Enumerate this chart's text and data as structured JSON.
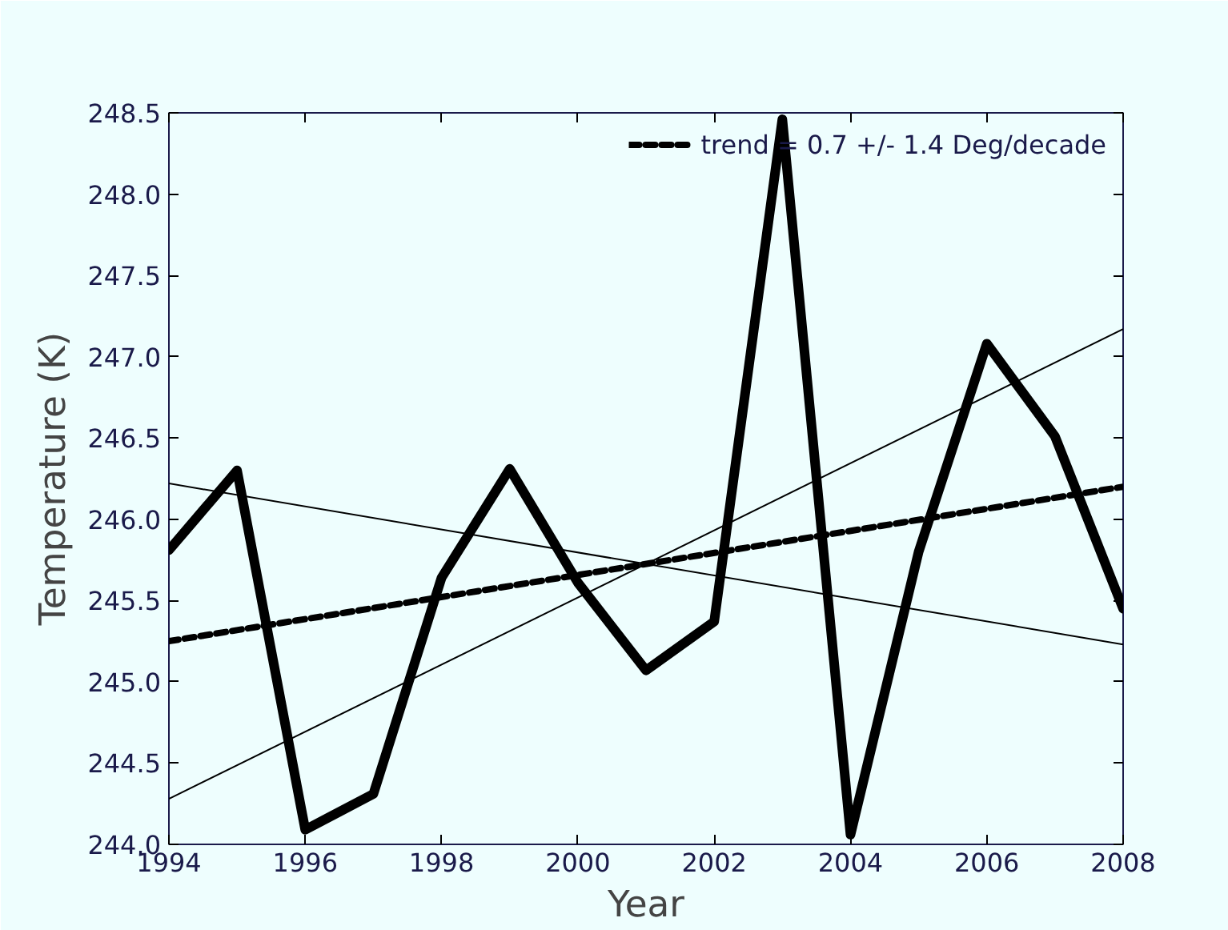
{
  "chart_data": {
    "type": "line",
    "xlabel": "Year",
    "ylabel": "Temperature (K)",
    "xlim": [
      1994,
      2008
    ],
    "ylim": [
      244.0,
      248.5
    ],
    "xticks": [
      1994,
      1996,
      1998,
      2000,
      2002,
      2004,
      2006,
      2008
    ],
    "yticks": [
      {
        "value": 244.0,
        "label": "244.0"
      },
      {
        "value": 244.5,
        "label": "244.5"
      },
      {
        "value": 245.0,
        "label": "245.0"
      },
      {
        "value": 245.5,
        "label": "245.5"
      },
      {
        "value": 246.0,
        "label": "246.0"
      },
      {
        "value": 246.5,
        "label": "246.5"
      },
      {
        "value": 247.0,
        "label": "247.0"
      },
      {
        "value": 247.5,
        "label": "247.5"
      },
      {
        "value": 248.0,
        "label": "248.0"
      },
      {
        "value": 248.5,
        "label": "248.5"
      }
    ],
    "grid": false,
    "legend": "top right",
    "line_style": "solid",
    "series": [
      {
        "color": "#000000",
        "x": [
          1994,
          1995,
          1996,
          1997,
          1998,
          1999,
          2000,
          2001,
          2002,
          2003,
          2004,
          2005,
          2006,
          2007,
          2008
        ],
        "values": [
          245.81,
          246.3,
          244.09,
          244.31,
          245.64,
          246.31,
          245.61,
          245.07,
          245.37,
          248.46,
          244.06,
          245.8,
          247.08,
          246.51,
          245.45
        ]
      },
      {
        "name": "trend = 0.7 +/- 1.4 Deg/decade",
        "color": "#000000",
        "line_style": "dashed",
        "x": [
          1994,
          2008
        ],
        "values": [
          245.25,
          246.2
        ]
      },
      {
        "color": "#000000",
        "x": [
          1994,
          2008
        ],
        "values": [
          244.28,
          247.17
        ]
      },
      {
        "color": "#000000",
        "x": [
          1994,
          2008
        ],
        "values": [
          246.22,
          245.23
        ]
      }
    ]
  }
}
